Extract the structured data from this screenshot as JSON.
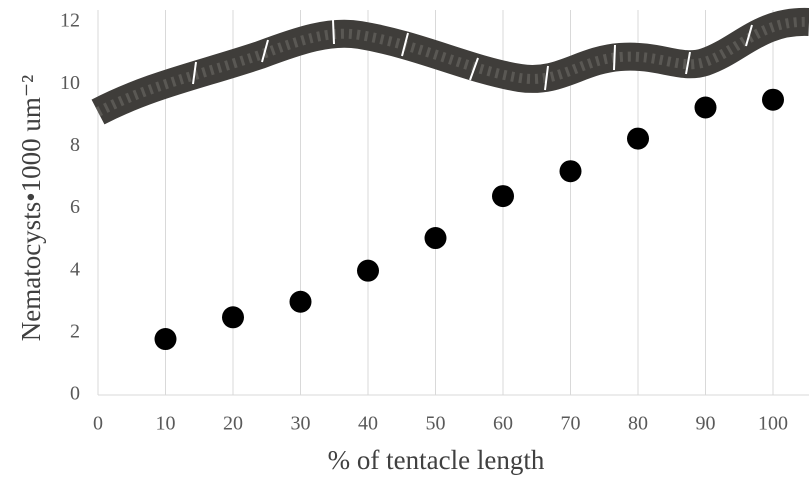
{
  "chart_data": {
    "type": "scatter",
    "xlabel": "% of tentacle length",
    "ylabel": "Nematocysts•1000 um⁻²",
    "x": [
      10,
      20,
      30,
      40,
      50,
      60,
      70,
      80,
      90,
      100
    ],
    "values": [
      1.8,
      2.5,
      3.0,
      4.0,
      5.05,
      6.4,
      7.2,
      8.25,
      9.25,
      9.5
    ],
    "color": "#000000",
    "xlim": [
      0,
      100
    ],
    "xticks": [
      0,
      10,
      20,
      30,
      40,
      50,
      60,
      70,
      80,
      90,
      100
    ],
    "ylim": [
      0,
      12
    ],
    "yticks": [
      0,
      2,
      4,
      6,
      8,
      10,
      12
    ],
    "grid": true
  }
}
